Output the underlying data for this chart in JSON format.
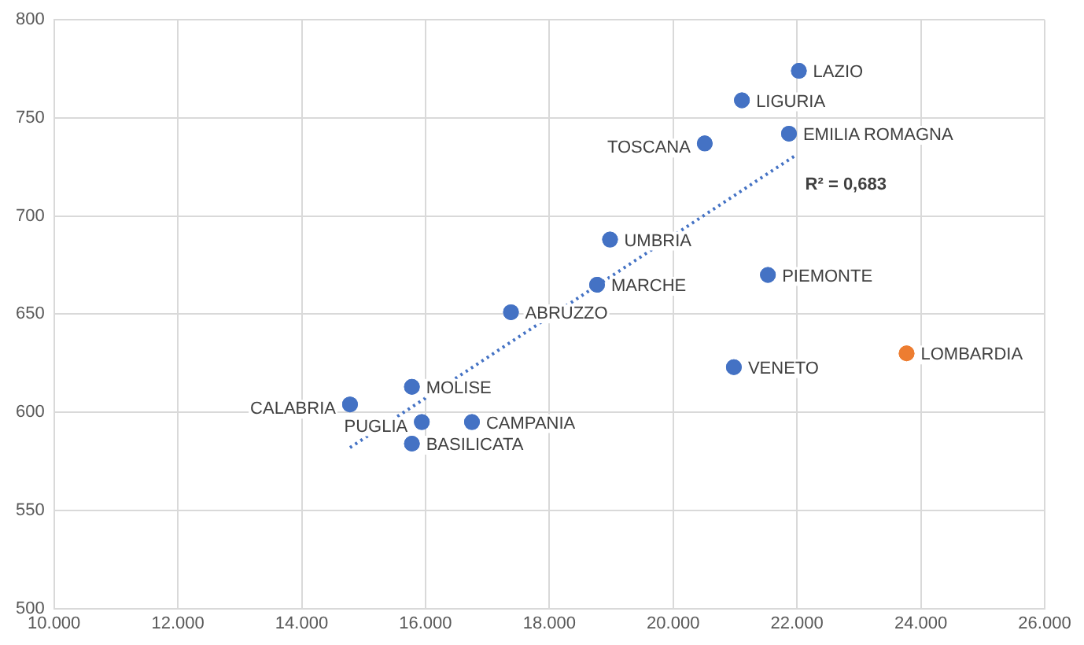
{
  "chart_data": {
    "type": "scatter",
    "x": [
      22030,
      21110,
      21870,
      20510,
      18980,
      18770,
      17380,
      15780,
      14780,
      15940,
      16750,
      15780,
      21530,
      20980,
      23770
    ],
    "series": [
      {
        "type": "scatter",
        "colors": [
          "#4472c4",
          "#4472c4",
          "#4472c4",
          "#4472c4",
          "#4472c4",
          "#4472c4",
          "#4472c4",
          "#4472c4",
          "#4472c4",
          "#4472c4",
          "#4472c4",
          "#4472c4",
          "#4472c4",
          "#4472c4",
          "#ed7d31"
        ],
        "values": [
          774,
          759,
          742,
          737,
          688,
          665,
          651,
          613,
          604,
          595,
          595,
          584,
          670,
          623,
          630
        ]
      },
      {
        "type": "line",
        "color": "#4472c4",
        "x": [
          14780,
          21980
        ],
        "values": [
          582,
          731
        ],
        "line_style": "dotted",
        "marker": "none"
      }
    ],
    "annotations": [
      {
        "text": "LAZIO",
        "x": 22030,
        "y": 774
      },
      {
        "text": "LIGURIA",
        "x": 21110,
        "y": 759
      },
      {
        "text": "EMILIA ROMAGNA",
        "x": 21870,
        "y": 742
      },
      {
        "text": "TOSCANA",
        "x": 20510,
        "y": 737
      },
      {
        "text": "UMBRIA",
        "x": 18980,
        "y": 688
      },
      {
        "text": "MARCHE",
        "x": 18770,
        "y": 665
      },
      {
        "text": "ABRUZZO",
        "x": 17380,
        "y": 651
      },
      {
        "text": "MOLISE",
        "x": 15780,
        "y": 613
      },
      {
        "text": "CALABRIA",
        "x": 14780,
        "y": 604
      },
      {
        "text": "PUGLIA",
        "x": 15940,
        "y": 595
      },
      {
        "text": "CAMPANIA",
        "x": 16750,
        "y": 595
      },
      {
        "text": "BASILICATA",
        "x": 15780,
        "y": 584
      },
      {
        "text": "PIEMONTE",
        "x": 21530,
        "y": 670
      },
      {
        "text": "VENETO",
        "x": 20980,
        "y": 623
      },
      {
        "text": "LOMBARDIA",
        "x": 23770,
        "y": 630
      },
      {
        "text": "R² = 0,683",
        "x": 21980,
        "y": 731
      }
    ],
    "xlim": [
      10000,
      26000
    ],
    "xticks": [
      {
        "value": 10000,
        "label": "10.000"
      },
      {
        "value": 12000,
        "label": "12.000"
      },
      {
        "value": 14000,
        "label": "14.000"
      },
      {
        "value": 16000,
        "label": "16.000"
      },
      {
        "value": 18000,
        "label": "18.000"
      },
      {
        "value": 20000,
        "label": "20.000"
      },
      {
        "value": 22000,
        "label": "22.000"
      },
      {
        "value": 24000,
        "label": "24.000"
      },
      {
        "value": 26000,
        "label": "26.000"
      }
    ],
    "ylim": [
      500,
      800
    ],
    "yticks": [
      500,
      550,
      600,
      650,
      700,
      750,
      800
    ],
    "grid": true,
    "legend": false,
    "marker": "circle"
  }
}
